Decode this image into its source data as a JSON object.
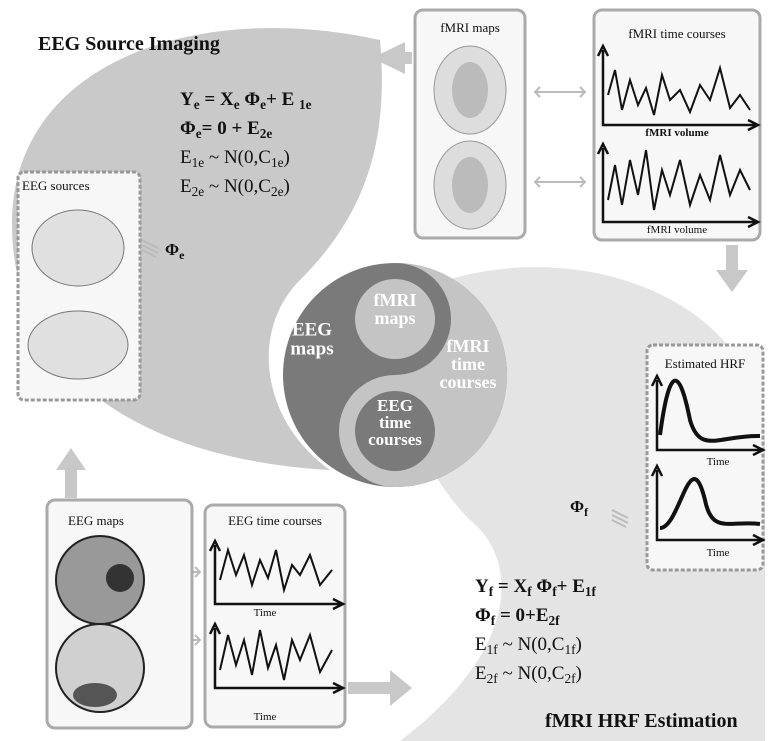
{
  "eeg_source_imaging": {
    "title": "EEG Source Imaging",
    "equations": [
      [
        "Y",
        "e",
        " = X",
        "e",
        " Φ",
        "e",
        "+ E ",
        "1e"
      ],
      [
        "Φ",
        "e",
        "= 0 + E",
        "2e"
      ],
      [
        "E",
        "1e",
        " ~ N(0,C",
        "1e",
        ")"
      ],
      [
        "E",
        "2e",
        " ~ N(0,C",
        "2e",
        ")"
      ]
    ],
    "sources_box": {
      "label": "EEG sources"
    },
    "phi": [
      "Φ",
      "e"
    ]
  },
  "fmri_maps_box": {
    "label": "fMRI maps"
  },
  "fmri_time_courses_box": {
    "label": "fMRI time courses",
    "axis_labels": [
      "fMRI volume",
      "fMRI volume"
    ]
  },
  "center": {
    "eeg_maps": [
      "EEG",
      "maps"
    ],
    "fmri_maps": [
      "fMRI",
      "maps"
    ],
    "fmri_time_courses": [
      "fMRI",
      "time",
      "courses"
    ],
    "eeg_time_courses": [
      "EEG",
      "time",
      "courses"
    ]
  },
  "hrf_box": {
    "label": "Estimated HRF",
    "axis_labels": [
      "Time",
      "Time"
    ]
  },
  "fmri_hrf_estimation": {
    "title": "fMRI HRF Estimation",
    "equations": [
      [
        "Y",
        "f",
        " = X",
        "f",
        " Φ",
        "f",
        "+ E",
        "1f"
      ],
      [
        "Φ",
        "f",
        " = 0+E",
        "2f"
      ],
      [
        "E",
        "1f",
        " ~ N(0,C",
        "1f",
        ")"
      ],
      [
        "E",
        "2f",
        " ~ N(0,C",
        "2f",
        ")"
      ]
    ],
    "phi": [
      "Φ",
      "f"
    ]
  },
  "eeg_maps_box": {
    "label": "EEG maps"
  },
  "eeg_time_courses_box": {
    "label": "EEG time courses",
    "axis_labels": [
      "Time",
      "Time"
    ]
  }
}
